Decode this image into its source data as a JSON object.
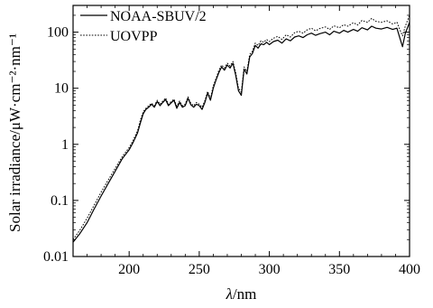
{
  "chart_data": {
    "type": "line",
    "xlabel_symbol": "λ",
    "xlabel_unit": "/nm",
    "ylabel": "Solar irradiance/μW·cm⁻²·nm⁻¹",
    "xlim": [
      160,
      400
    ],
    "ylim": [
      0.01,
      300
    ],
    "yscale": "log",
    "x_ticks": [
      200,
      250,
      300,
      350,
      400
    ],
    "y_ticks": [
      {
        "value": 0.01,
        "label": "0.01"
      },
      {
        "value": 0.1,
        "label": "0.1"
      },
      {
        "value": 1,
        "label": "1"
      },
      {
        "value": 10,
        "label": "10"
      },
      {
        "value": 100,
        "label": "100"
      }
    ],
    "legend_position": "top-left",
    "series": [
      {
        "name": "NOAA-SBUV/2",
        "style": "solid",
        "points": [
          [
            160,
            0.018
          ],
          [
            165,
            0.026
          ],
          [
            170,
            0.04
          ],
          [
            175,
            0.07
          ],
          [
            180,
            0.12
          ],
          [
            185,
            0.2
          ],
          [
            190,
            0.33
          ],
          [
            195,
            0.55
          ],
          [
            200,
            0.8
          ],
          [
            203,
            1.1
          ],
          [
            206,
            1.6
          ],
          [
            208,
            2.4
          ],
          [
            210,
            3.5
          ],
          [
            212,
            4.2
          ],
          [
            214,
            4.6
          ],
          [
            216,
            5.2
          ],
          [
            218,
            4.6
          ],
          [
            220,
            5.8
          ],
          [
            222,
            4.9
          ],
          [
            224,
            5.6
          ],
          [
            226,
            6.3
          ],
          [
            228,
            4.9
          ],
          [
            230,
            5.5
          ],
          [
            232,
            6.1
          ],
          [
            234,
            4.4
          ],
          [
            236,
            5.6
          ],
          [
            238,
            4.6
          ],
          [
            240,
            4.9
          ],
          [
            242,
            6.6
          ],
          [
            244,
            5.1
          ],
          [
            246,
            4.6
          ],
          [
            248,
            5.2
          ],
          [
            250,
            4.9
          ],
          [
            252,
            4.2
          ],
          [
            254,
            5.6
          ],
          [
            256,
            8.2
          ],
          [
            258,
            6.1
          ],
          [
            260,
            10
          ],
          [
            262,
            14
          ],
          [
            264,
            19
          ],
          [
            266,
            24
          ],
          [
            268,
            21
          ],
          [
            270,
            26
          ],
          [
            272,
            23
          ],
          [
            274,
            28
          ],
          [
            276,
            17
          ],
          [
            278,
            9
          ],
          [
            280,
            7.5
          ],
          [
            282,
            22
          ],
          [
            284,
            18
          ],
          [
            286,
            36
          ],
          [
            288,
            42
          ],
          [
            290,
            58
          ],
          [
            292,
            52
          ],
          [
            294,
            62
          ],
          [
            296,
            60
          ],
          [
            298,
            66
          ],
          [
            300,
            60
          ],
          [
            303,
            68
          ],
          [
            306,
            72
          ],
          [
            309,
            64
          ],
          [
            312,
            76
          ],
          [
            315,
            70
          ],
          [
            318,
            82
          ],
          [
            321,
            86
          ],
          [
            324,
            80
          ],
          [
            327,
            90
          ],
          [
            330,
            96
          ],
          [
            333,
            88
          ],
          [
            336,
            94
          ],
          [
            340,
            100
          ],
          [
            343,
            90
          ],
          [
            346,
            104
          ],
          [
            350,
            96
          ],
          [
            353,
            108
          ],
          [
            356,
            100
          ],
          [
            360,
            112
          ],
          [
            363,
            104
          ],
          [
            366,
            120
          ],
          [
            370,
            110
          ],
          [
            373,
            128
          ],
          [
            376,
            118
          ],
          [
            380,
            114
          ],
          [
            384,
            122
          ],
          [
            388,
            112
          ],
          [
            391,
            118
          ],
          [
            393,
            80
          ],
          [
            395,
            55
          ],
          [
            397,
            95
          ],
          [
            400,
            150
          ]
        ]
      },
      {
        "name": "UOVPP",
        "style": "dotted",
        "points": [
          [
            160,
            0.02
          ],
          [
            165,
            0.03
          ],
          [
            170,
            0.048
          ],
          [
            175,
            0.082
          ],
          [
            180,
            0.14
          ],
          [
            185,
            0.23
          ],
          [
            190,
            0.37
          ],
          [
            195,
            0.6
          ],
          [
            200,
            0.88
          ],
          [
            203,
            1.2
          ],
          [
            206,
            1.75
          ],
          [
            208,
            2.7
          ],
          [
            210,
            3.8
          ],
          [
            212,
            4.4
          ],
          [
            214,
            4.9
          ],
          [
            216,
            5.4
          ],
          [
            218,
            4.9
          ],
          [
            220,
            6.1
          ],
          [
            222,
            5.2
          ],
          [
            224,
            5.9
          ],
          [
            226,
            6.7
          ],
          [
            228,
            5.2
          ],
          [
            230,
            5.8
          ],
          [
            232,
            6.4
          ],
          [
            234,
            4.8
          ],
          [
            236,
            5.9
          ],
          [
            238,
            4.9
          ],
          [
            240,
            5.2
          ],
          [
            242,
            7
          ],
          [
            244,
            5.4
          ],
          [
            246,
            4.9
          ],
          [
            248,
            5.6
          ],
          [
            250,
            5.2
          ],
          [
            252,
            4.6
          ],
          [
            254,
            6
          ],
          [
            256,
            8.8
          ],
          [
            258,
            6.5
          ],
          [
            260,
            11
          ],
          [
            262,
            15
          ],
          [
            264,
            21
          ],
          [
            266,
            26
          ],
          [
            268,
            23
          ],
          [
            270,
            28
          ],
          [
            272,
            25
          ],
          [
            274,
            30
          ],
          [
            276,
            19
          ],
          [
            278,
            10
          ],
          [
            280,
            8.5
          ],
          [
            282,
            24
          ],
          [
            284,
            20
          ],
          [
            286,
            40
          ],
          [
            288,
            46
          ],
          [
            290,
            64
          ],
          [
            292,
            58
          ],
          [
            294,
            70
          ],
          [
            296,
            66
          ],
          [
            298,
            74
          ],
          [
            300,
            68
          ],
          [
            303,
            78
          ],
          [
            306,
            84
          ],
          [
            309,
            74
          ],
          [
            312,
            90
          ],
          [
            315,
            82
          ],
          [
            318,
            98
          ],
          [
            321,
            104
          ],
          [
            324,
            96
          ],
          [
            327,
            110
          ],
          [
            330,
            118
          ],
          [
            333,
            106
          ],
          [
            336,
            116
          ],
          [
            340,
            124
          ],
          [
            343,
            112
          ],
          [
            346,
            130
          ],
          [
            350,
            120
          ],
          [
            353,
            136
          ],
          [
            356,
            128
          ],
          [
            360,
            148
          ],
          [
            363,
            134
          ],
          [
            366,
            162
          ],
          [
            370,
            150
          ],
          [
            373,
            176
          ],
          [
            376,
            156
          ],
          [
            380,
            150
          ],
          [
            384,
            160
          ],
          [
            388,
            140
          ],
          [
            391,
            150
          ],
          [
            393,
            112
          ],
          [
            395,
            86
          ],
          [
            397,
            128
          ],
          [
            400,
            200
          ]
        ]
      }
    ]
  }
}
